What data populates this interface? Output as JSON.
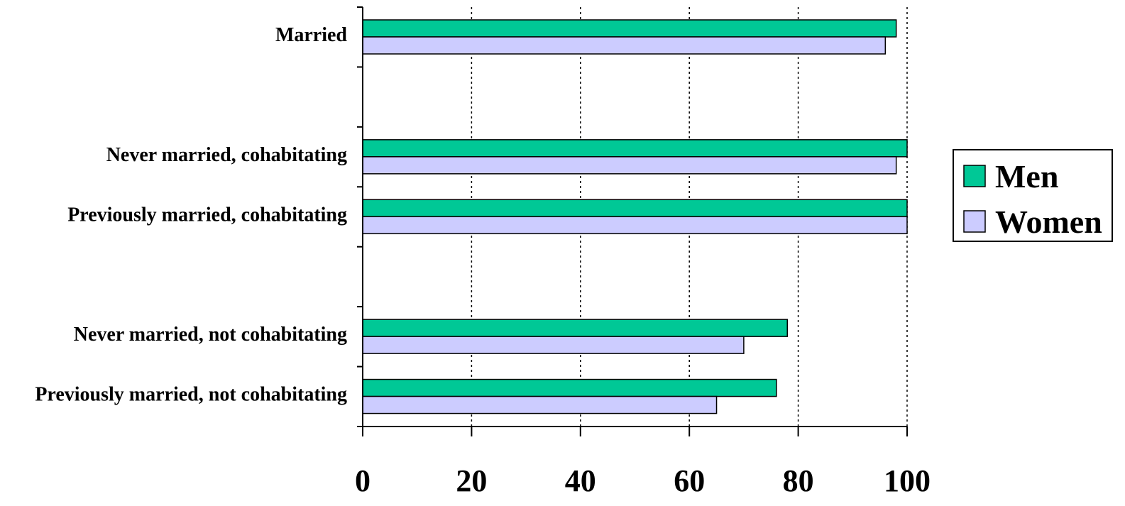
{
  "chart_data": {
    "type": "bar",
    "orientation": "horizontal",
    "title": "",
    "xlabel": "",
    "ylabel": "",
    "categories": [
      "Married",
      "Never married, cohabitating",
      "Previously married, cohabitating",
      "Never married, not cohabitating",
      "Previously married, not cohabitating"
    ],
    "series": [
      {
        "name": "Men",
        "color": "#00c896",
        "values": [
          98,
          100,
          100,
          78,
          76
        ]
      },
      {
        "name": "Women",
        "color": "#ccccff",
        "values": [
          96,
          98,
          100,
          70,
          65
        ]
      }
    ],
    "xlim": [
      0,
      100
    ],
    "xticks": [
      0,
      20,
      40,
      60,
      80,
      100
    ],
    "grid": "vertical dotted",
    "legend_position": "right"
  }
}
